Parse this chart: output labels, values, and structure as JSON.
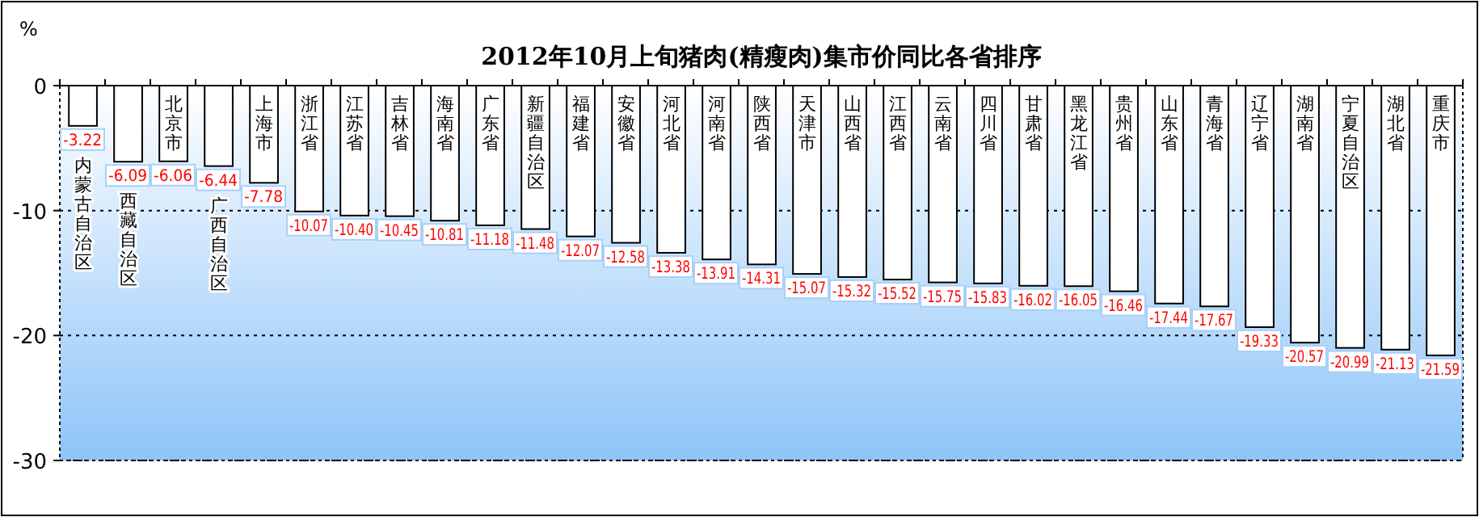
{
  "chart_data": {
    "type": "bar",
    "title": "2012年10月上旬猪肉(精瘦肉)集市价同比各省排序",
    "ylabel": "%",
    "categories": [
      "内蒙古自治区",
      "西藏自治区",
      "北京市",
      "广西自治区",
      "上海市",
      "浙江省",
      "江苏省",
      "吉林省",
      "海南省",
      "广东省",
      "新疆自治区",
      "福建省",
      "安徽省",
      "河北省",
      "河南省",
      "陕西省",
      "天津市",
      "山西省",
      "江西省",
      "云南省",
      "四川省",
      "甘肃省",
      "黑龙江省",
      "贵州省",
      "山东省",
      "青海省",
      "辽宁省",
      "湖南省",
      "宁夏自治区",
      "湖北省",
      "重庆市"
    ],
    "values": [
      -3.22,
      -6.09,
      -6.06,
      -6.44,
      -7.78,
      -10.07,
      -10.4,
      -10.45,
      -10.81,
      -11.18,
      -11.48,
      -12.07,
      -12.58,
      -13.38,
      -13.91,
      -14.31,
      -15.07,
      -15.32,
      -15.52,
      -15.75,
      -15.83,
      -16.02,
      -16.05,
      -16.46,
      -17.44,
      -17.67,
      -19.33,
      -20.57,
      -20.99,
      -21.13,
      -21.59
    ],
    "value_labels": [
      "-3.22",
      "-6.09",
      "-6.06",
      "-6.44",
      "-7.78",
      "-10.07",
      "-10.40",
      "-10.45",
      "-10.81",
      "-11.18",
      "-11.48",
      "-12.07",
      "-12.58",
      "-13.38",
      "-13.91",
      "-14.31",
      "-15.07",
      "-15.32",
      "-15.52",
      "-15.75",
      "-15.83",
      "-16.02",
      "-16.05",
      "-16.46",
      "-17.44",
      "-17.67",
      "-19.33",
      "-20.57",
      "-20.99",
      "-21.13",
      "-21.59"
    ],
    "data_labels": true,
    "color": "#ffffff",
    "ylim": [
      -30,
      0
    ],
    "yticks": [
      0,
      -10,
      -20,
      -30
    ],
    "grid": "y"
  }
}
